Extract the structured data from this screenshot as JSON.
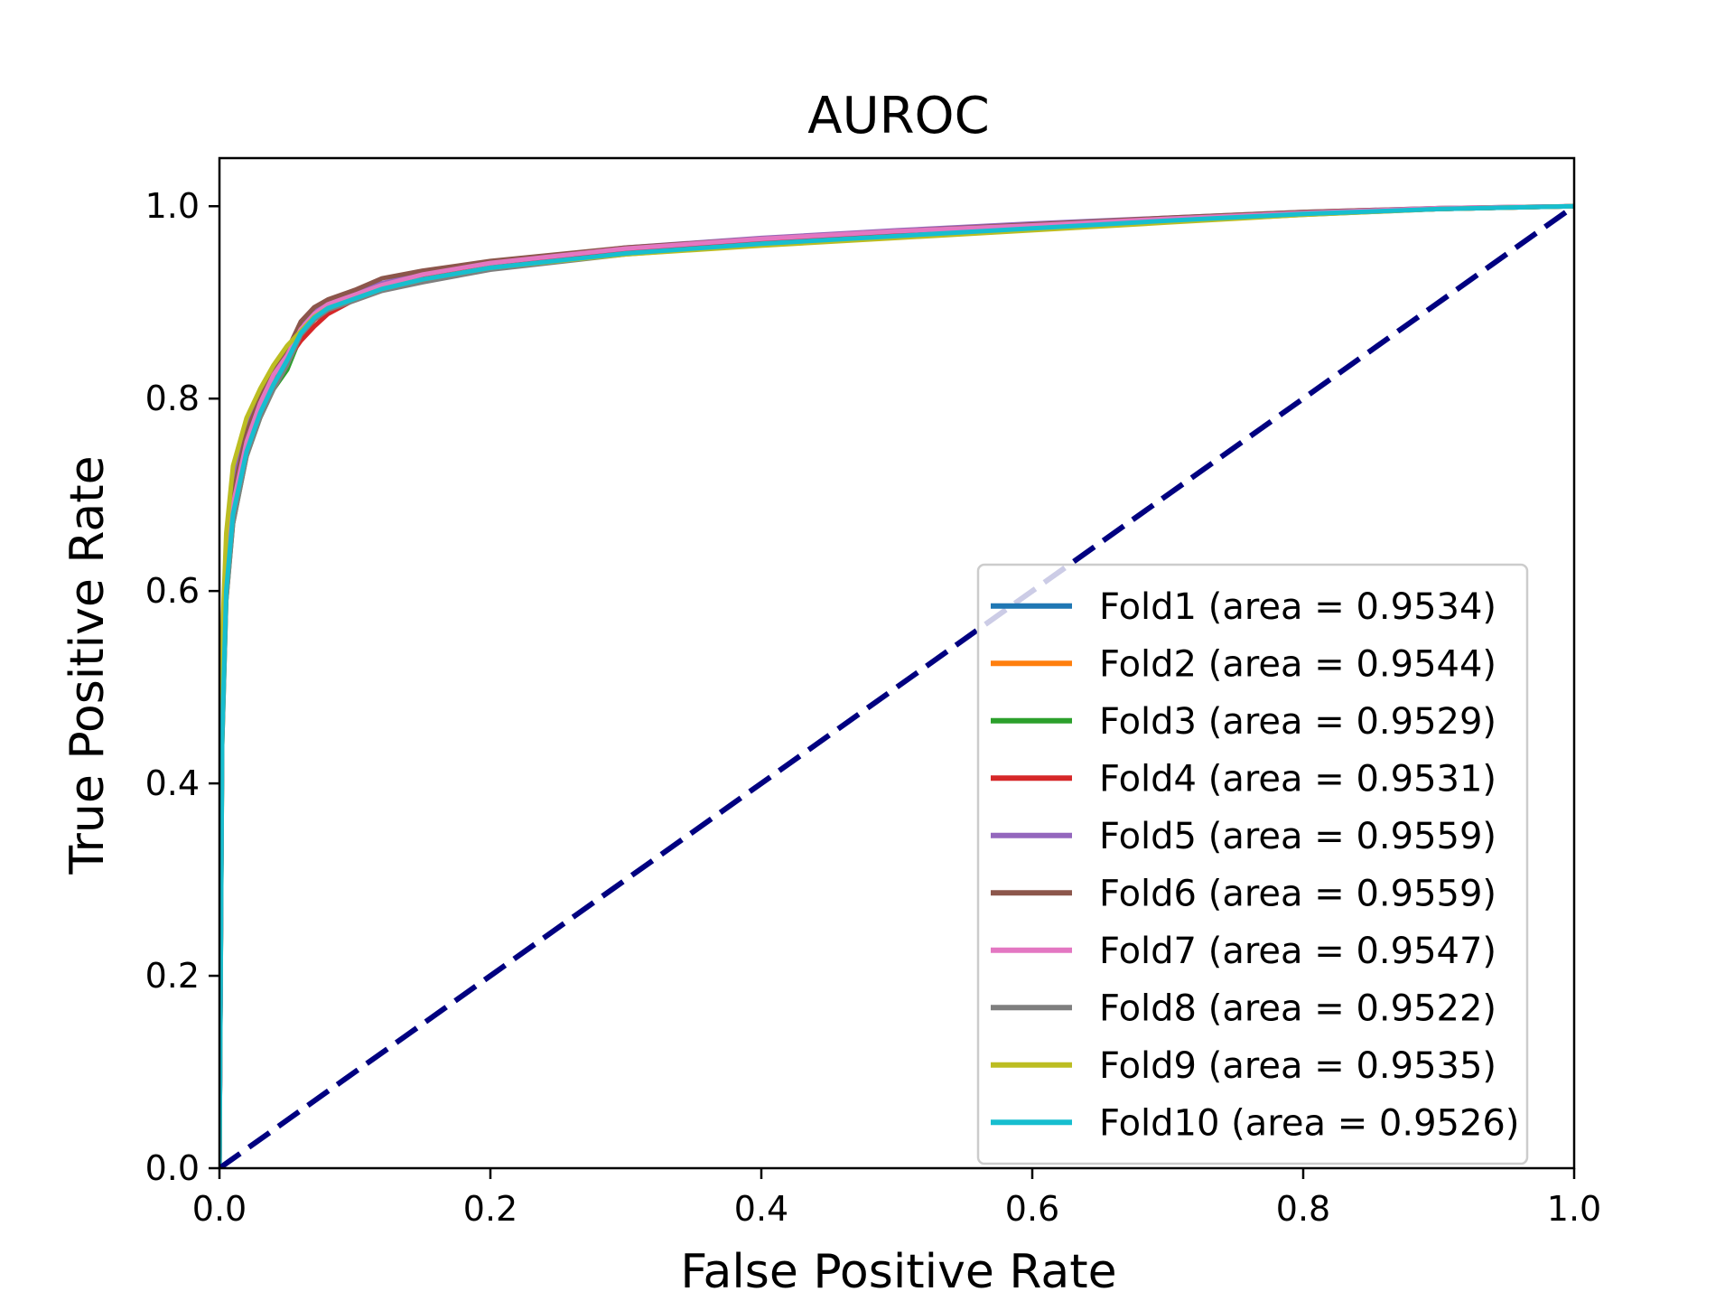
{
  "chart_data": {
    "type": "line",
    "title": "AUROC",
    "xlabel": "False Positive Rate",
    "ylabel": "True Positive Rate",
    "xlim": [
      0.0,
      1.0
    ],
    "ylim": [
      0.0,
      1.05
    ],
    "xticks": [
      "0.0",
      "0.2",
      "0.4",
      "0.6",
      "0.8",
      "1.0"
    ],
    "yticks": [
      "0.0",
      "0.2",
      "0.4",
      "0.6",
      "0.8",
      "1.0"
    ],
    "grid": false,
    "legend_position": "lower-right",
    "diagonal": {
      "x": [
        0,
        1
      ],
      "y": [
        0,
        1
      ],
      "color": "#000080",
      "style": "dashed"
    },
    "series": [
      {
        "name": "Fold1 (area = 0.9534)",
        "color": "#1f77b4",
        "x": [
          0,
          0.002,
          0.005,
          0.01,
          0.02,
          0.03,
          0.04,
          0.05,
          0.06,
          0.07,
          0.08,
          0.1,
          0.12,
          0.15,
          0.2,
          0.3,
          0.4,
          0.5,
          0.6,
          0.7,
          0.8,
          0.9,
          1.0
        ],
        "y": [
          0,
          0.45,
          0.6,
          0.68,
          0.75,
          0.79,
          0.82,
          0.84,
          0.87,
          0.885,
          0.895,
          0.905,
          0.915,
          0.925,
          0.937,
          0.952,
          0.962,
          0.97,
          0.977,
          0.985,
          0.992,
          0.997,
          1.0
        ]
      },
      {
        "name": "Fold2 (area = 0.9544)",
        "color": "#ff7f0e",
        "x": [
          0,
          0.002,
          0.005,
          0.01,
          0.02,
          0.03,
          0.04,
          0.05,
          0.06,
          0.07,
          0.08,
          0.1,
          0.12,
          0.15,
          0.2,
          0.3,
          0.4,
          0.5,
          0.6,
          0.7,
          0.8,
          0.9,
          1.0
        ],
        "y": [
          0,
          0.47,
          0.62,
          0.7,
          0.76,
          0.8,
          0.825,
          0.845,
          0.87,
          0.887,
          0.897,
          0.907,
          0.917,
          0.927,
          0.938,
          0.953,
          0.963,
          0.971,
          0.978,
          0.986,
          0.992,
          0.997,
          1.0
        ]
      },
      {
        "name": "Fold3 (area = 0.9529)",
        "color": "#2ca02c",
        "x": [
          0,
          0.002,
          0.005,
          0.01,
          0.02,
          0.03,
          0.04,
          0.05,
          0.06,
          0.07,
          0.08,
          0.1,
          0.12,
          0.15,
          0.2,
          0.3,
          0.4,
          0.5,
          0.6,
          0.7,
          0.8,
          0.9,
          1.0
        ],
        "y": [
          0,
          0.44,
          0.59,
          0.67,
          0.74,
          0.78,
          0.81,
          0.83,
          0.865,
          0.882,
          0.893,
          0.903,
          0.913,
          0.922,
          0.935,
          0.951,
          0.961,
          0.969,
          0.977,
          0.985,
          0.992,
          0.997,
          1.0
        ]
      },
      {
        "name": "Fold4 (area = 0.9531)",
        "color": "#d62728",
        "x": [
          0,
          0.002,
          0.005,
          0.01,
          0.02,
          0.03,
          0.04,
          0.05,
          0.06,
          0.07,
          0.08,
          0.1,
          0.12,
          0.15,
          0.2,
          0.3,
          0.4,
          0.5,
          0.6,
          0.7,
          0.8,
          0.9,
          1.0
        ],
        "y": [
          0,
          0.46,
          0.61,
          0.69,
          0.75,
          0.79,
          0.82,
          0.84,
          0.86,
          0.875,
          0.888,
          0.903,
          0.915,
          0.925,
          0.937,
          0.952,
          0.962,
          0.97,
          0.977,
          0.985,
          0.992,
          0.997,
          1.0
        ]
      },
      {
        "name": "Fold5 (area = 0.9559)",
        "color": "#9467bd",
        "x": [
          0,
          0.002,
          0.005,
          0.01,
          0.02,
          0.03,
          0.04,
          0.05,
          0.06,
          0.07,
          0.08,
          0.1,
          0.12,
          0.15,
          0.2,
          0.3,
          0.4,
          0.5,
          0.6,
          0.7,
          0.8,
          0.9,
          1.0
        ],
        "y": [
          0,
          0.48,
          0.63,
          0.71,
          0.77,
          0.805,
          0.83,
          0.85,
          0.875,
          0.89,
          0.9,
          0.91,
          0.92,
          0.93,
          0.941,
          0.957,
          0.967,
          0.975,
          0.982,
          0.988,
          0.994,
          0.998,
          1.0
        ]
      },
      {
        "name": "Fold6 (area = 0.9559)",
        "color": "#8c564b",
        "x": [
          0,
          0.002,
          0.005,
          0.01,
          0.02,
          0.03,
          0.04,
          0.05,
          0.06,
          0.07,
          0.08,
          0.1,
          0.12,
          0.15,
          0.2,
          0.3,
          0.4,
          0.5,
          0.6,
          0.7,
          0.8,
          0.9,
          1.0
        ],
        "y": [
          0,
          0.47,
          0.62,
          0.7,
          0.765,
          0.8,
          0.83,
          0.85,
          0.88,
          0.895,
          0.903,
          0.913,
          0.925,
          0.933,
          0.943,
          0.957,
          0.966,
          0.974,
          0.981,
          0.988,
          0.994,
          0.998,
          1.0
        ]
      },
      {
        "name": "Fold7 (area = 0.9547)",
        "color": "#e377c2",
        "x": [
          0,
          0.002,
          0.005,
          0.01,
          0.02,
          0.03,
          0.04,
          0.05,
          0.06,
          0.07,
          0.08,
          0.1,
          0.12,
          0.15,
          0.2,
          0.3,
          0.4,
          0.5,
          0.6,
          0.7,
          0.8,
          0.9,
          1.0
        ],
        "y": [
          0,
          0.46,
          0.61,
          0.69,
          0.755,
          0.795,
          0.825,
          0.845,
          0.872,
          0.888,
          0.898,
          0.908,
          0.918,
          0.929,
          0.941,
          0.956,
          0.966,
          0.974,
          0.98,
          0.987,
          0.993,
          0.998,
          1.0
        ]
      },
      {
        "name": "Fold8 (area = 0.9522)",
        "color": "#7f7f7f",
        "x": [
          0,
          0.002,
          0.005,
          0.01,
          0.02,
          0.03,
          0.04,
          0.05,
          0.06,
          0.07,
          0.08,
          0.1,
          0.12,
          0.15,
          0.2,
          0.3,
          0.4,
          0.5,
          0.6,
          0.7,
          0.8,
          0.9,
          1.0
        ],
        "y": [
          0,
          0.44,
          0.59,
          0.67,
          0.74,
          0.78,
          0.81,
          0.835,
          0.866,
          0.882,
          0.892,
          0.902,
          0.912,
          0.921,
          0.934,
          0.95,
          0.96,
          0.968,
          0.976,
          0.984,
          0.991,
          0.997,
          1.0
        ]
      },
      {
        "name": "Fold9 (area = 0.9535)",
        "color": "#bcbd22",
        "x": [
          0,
          0.002,
          0.005,
          0.01,
          0.02,
          0.03,
          0.04,
          0.05,
          0.06,
          0.07,
          0.08,
          0.1,
          0.12,
          0.15,
          0.2,
          0.3,
          0.4,
          0.5,
          0.6,
          0.7,
          0.8,
          0.9,
          1.0
        ],
        "y": [
          0,
          0.55,
          0.66,
          0.73,
          0.78,
          0.81,
          0.835,
          0.855,
          0.87,
          0.885,
          0.894,
          0.904,
          0.914,
          0.924,
          0.936,
          0.95,
          0.959,
          0.967,
          0.975,
          0.983,
          0.991,
          0.997,
          1.0
        ]
      },
      {
        "name": "Fold10 (area = 0.9526)",
        "color": "#17becf",
        "x": [
          0,
          0.002,
          0.005,
          0.01,
          0.02,
          0.03,
          0.04,
          0.05,
          0.06,
          0.07,
          0.08,
          0.1,
          0.12,
          0.15,
          0.2,
          0.3,
          0.4,
          0.5,
          0.6,
          0.7,
          0.8,
          0.9,
          1.0
        ],
        "y": [
          0,
          0.45,
          0.6,
          0.68,
          0.745,
          0.785,
          0.815,
          0.84,
          0.868,
          0.884,
          0.894,
          0.904,
          0.914,
          0.924,
          0.936,
          0.951,
          0.961,
          0.969,
          0.977,
          0.985,
          0.992,
          0.997,
          1.0
        ]
      }
    ]
  }
}
